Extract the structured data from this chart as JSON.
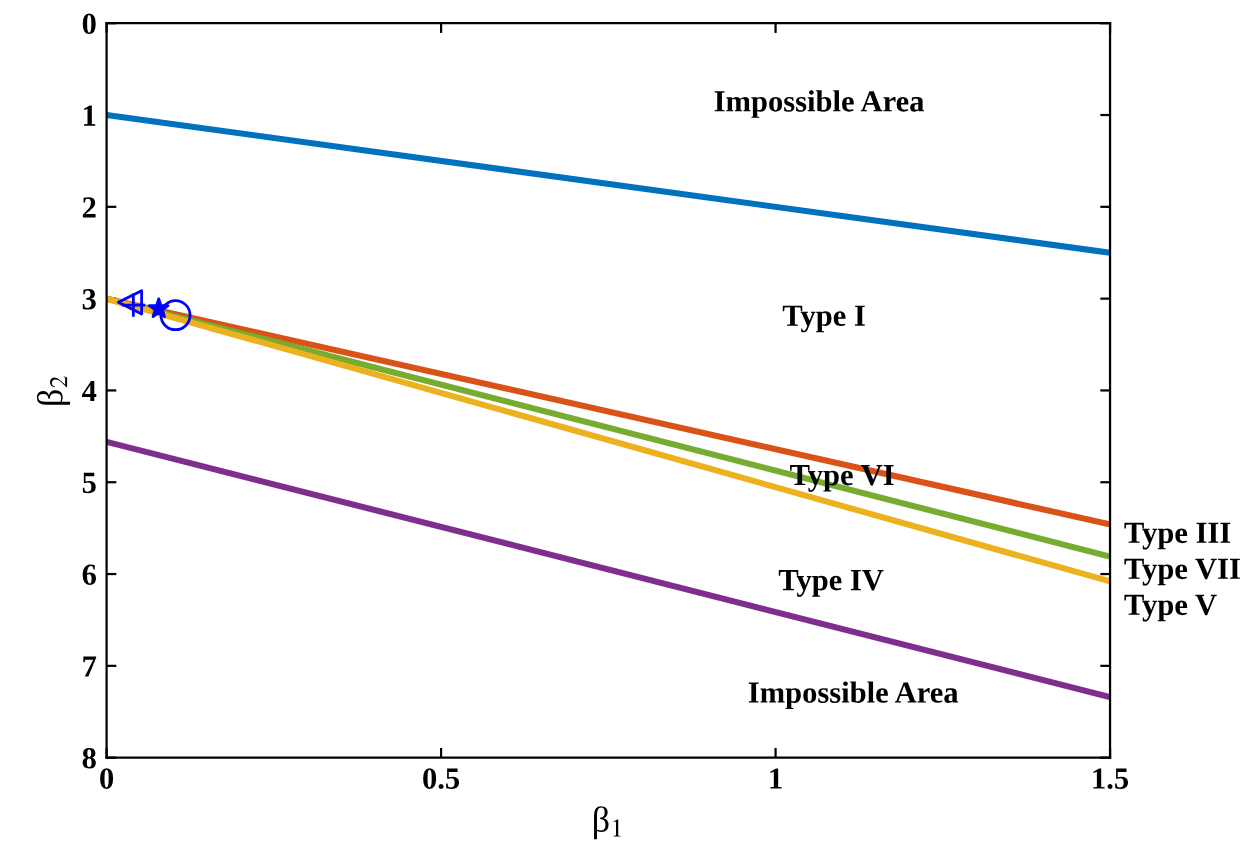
{
  "chart_data": {
    "type": "line",
    "xlabel": "β$_{1}$",
    "ylabel": "β$_{2}$",
    "xlim": [
      0,
      1.5
    ],
    "ylim": [
      8,
      0
    ],
    "xticks": [
      0,
      0.5,
      1,
      1.5
    ],
    "yticks": [
      0,
      1,
      2,
      3,
      4,
      5,
      6,
      7,
      8
    ],
    "grid": false,
    "legend": false,
    "series": [
      {
        "color": "#0072bd",
        "x": [
          0,
          1.5
        ],
        "values": [
          1,
          2.5
        ]
      },
      {
        "name": "Type III",
        "color": "#d95319",
        "x": [
          0,
          1.5
        ],
        "values": [
          3,
          5.46
        ]
      },
      {
        "name": "Type VII",
        "color": "#77ac30",
        "x": [
          0,
          1.5
        ],
        "values": [
          3,
          5.81
        ]
      },
      {
        "name": "Type V",
        "color": "#edb120",
        "x": [
          0,
          1.5
        ],
        "values": [
          3,
          6.08
        ]
      },
      {
        "color": "#7e2f8e",
        "x": [
          0,
          1.5
        ],
        "values": [
          4.56,
          7.34
        ]
      },
      {
        "type": "scatter",
        "marker": "triangle",
        "color": "#0000ff",
        "x": [
          0.035
        ],
        "values": [
          3.04
        ]
      },
      {
        "type": "scatter",
        "marker": "cross",
        "color": "#0000ff",
        "x": [
          0.04
        ],
        "values": [
          3.07
        ]
      },
      {
        "type": "scatter",
        "marker": "star",
        "color": "#0000ff",
        "x": [
          0.078
        ],
        "values": [
          3.11
        ]
      },
      {
        "type": "scatter",
        "marker": "circle",
        "color": "#0000ff",
        "x": [
          0.103
        ],
        "values": [
          3.18
        ]
      }
    ],
    "annotations": [
      "Impossible Area",
      "Type I",
      "Type VI",
      "Type IV",
      "Impossible Area"
    ]
  }
}
